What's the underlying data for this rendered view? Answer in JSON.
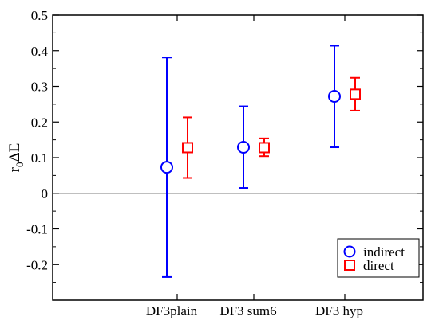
{
  "chart_data": {
    "type": "scatter",
    "title": "",
    "xlabel": "",
    "ylabel": "r₀ΔE",
    "ylabel_main": "r",
    "ylabel_sub": "0",
    "ylabel_tail": "ΔE",
    "ylim": [
      -0.3,
      0.5
    ],
    "y_ticks": [
      -0.2,
      -0.1,
      0,
      0.1,
      0.2,
      0.3,
      0.4,
      0.5
    ],
    "y_tick_labels": [
      "-0.2",
      "-0.1",
      "0",
      "0.1",
      "0.2",
      "0.3",
      "0.4",
      "0.5"
    ],
    "categories": [
      "DF3plain",
      "DF3 sum6",
      "DF3 hyp"
    ],
    "zero_line": true,
    "grid": false,
    "legend_position": "bottom-right",
    "series": [
      {
        "name": "indirect",
        "marker": "circle",
        "color": "#0000ff",
        "values": [
          0.073,
          0.129,
          0.272
        ],
        "error_low": [
          -0.235,
          0.015,
          0.129
        ],
        "error_high": [
          0.381,
          0.244,
          0.414
        ]
      },
      {
        "name": "direct",
        "marker": "square",
        "color": "#ff0000",
        "values": [
          0.128,
          0.128,
          0.278
        ],
        "error_low": [
          0.043,
          0.104,
          0.232
        ],
        "error_high": [
          0.213,
          0.154,
          0.324
        ]
      }
    ]
  }
}
